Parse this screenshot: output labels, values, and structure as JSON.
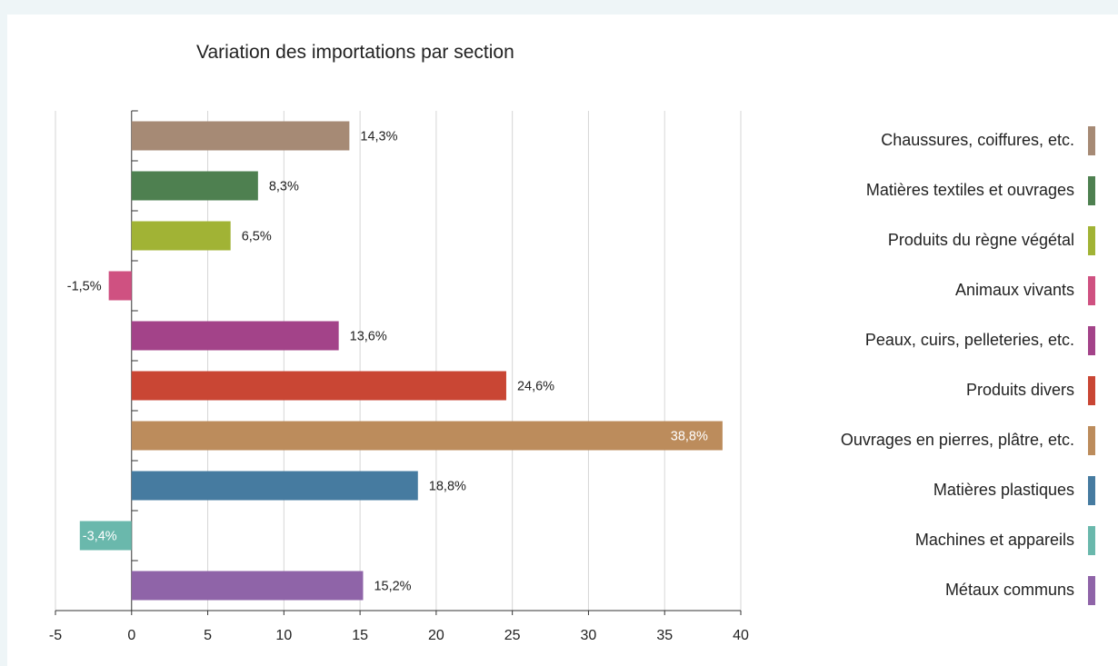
{
  "chart_data": {
    "type": "bar",
    "orientation": "horizontal",
    "title": "Variation des importations par section",
    "xlim": [
      -5,
      40
    ],
    "xticks": [
      "-5",
      "0",
      "5",
      "10",
      "15",
      "20",
      "25",
      "30",
      "35",
      "40"
    ],
    "grid": true,
    "legend": "right",
    "categories": [
      "Chaussures, coiffures, etc.",
      "Matières textiles et ouvrages",
      "Produits du règne végétal",
      "Animaux vivants",
      "Peaux, cuirs, pelleteries, etc.",
      "Produits divers",
      "Ouvrages en pierres, plâtre, etc.",
      "Matières plastiques",
      "Machines et appareils",
      "Métaux communs"
    ],
    "values": [
      14.3,
      8.3,
      6.5,
      -1.5,
      13.6,
      24.6,
      38.8,
      18.8,
      -3.4,
      15.2
    ],
    "value_labels": [
      "14,3%",
      "8,3%",
      "6,5%",
      "-1,5%",
      "13,6%",
      "24,6%",
      "38,8%",
      "18,8%",
      "-3,4%",
      "15,2%"
    ],
    "colors": [
      "#a68a75",
      "#4e8050",
      "#a1b335",
      "#cf5181",
      "#a34389",
      "#c94634",
      "#bc8c5c",
      "#467ba0",
      "#6ab8ac",
      "#8f64a8"
    ]
  }
}
